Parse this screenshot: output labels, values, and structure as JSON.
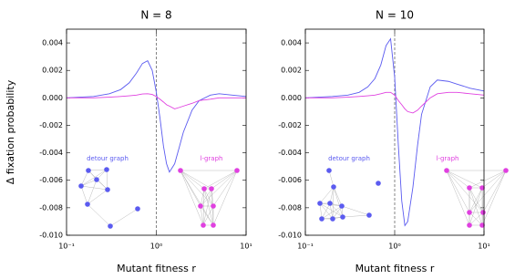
{
  "chart_data": [
    {
      "type": "line",
      "title": "N = 8",
      "xlabel": "Mutant fitness r",
      "ylabel": "Δ  fixation probability",
      "xscale": "log",
      "xlim": [
        0.1,
        10
      ],
      "xticks": [
        {
          "value": 0.1,
          "label": "10⁻¹"
        },
        {
          "value": 1,
          "label": "10⁰"
        },
        {
          "value": 10,
          "label": "10¹"
        }
      ],
      "ylim": [
        -0.01,
        0.005
      ],
      "yticks": [
        0.004,
        0.002,
        {
          "value": 0,
          "label": "0.000"
        },
        -0.002,
        -0.004,
        -0.006,
        -0.008,
        {
          "value": -0.01,
          "label": "-0.010"
        }
      ],
      "vline": 1,
      "annotations": [
        "detour graph",
        "l-graph"
      ],
      "x": [
        0.1,
        0.2,
        0.3,
        0.4,
        0.5,
        0.6,
        0.7,
        0.8,
        0.9,
        1,
        1.1,
        1.2,
        1.3,
        1.4,
        1.6,
        1.8,
        2,
        2.5,
        3,
        4,
        5,
        7,
        10
      ],
      "series": [
        {
          "color": "#5b5bf0",
          "values": [
            0,
            0.0001,
            0.0003,
            0.0006,
            0.0011,
            0.0018,
            0.0025,
            0.0027,
            0.002,
            0.0004,
            -0.0015,
            -0.0035,
            -0.0048,
            -0.0054,
            -0.0048,
            -0.0036,
            -0.0025,
            -0.0009,
            -0.0002,
            0.0002,
            0.0003,
            0.0002,
            0.0001
          ]
        },
        {
          "color": "#e040e0",
          "values": [
            0,
            0,
            5e-05,
            0.0001,
            0.00015,
            0.0002,
            0.00028,
            0.0003,
            0.00025,
            0.0001,
            -0.0001,
            -0.0003,
            -0.0005,
            -0.0006,
            -0.0008,
            -0.0007,
            -0.0006,
            -0.0004,
            -0.0002,
            -0.0001,
            0,
            0,
            0
          ]
        }
      ]
    },
    {
      "type": "line",
      "title": "N = 10",
      "xlabel": "Mutant fitness r",
      "xscale": "log",
      "xlim": [
        0.1,
        10
      ],
      "xticks": [
        {
          "value": 0.1,
          "label": "10⁻¹"
        },
        {
          "value": 1,
          "label": "10⁰"
        },
        {
          "value": 10,
          "label": "10¹"
        }
      ],
      "ylim": [
        -0.01,
        0.005
      ],
      "yticks": [
        0.004,
        0.002,
        {
          "value": 0,
          "label": "0.000"
        },
        -0.002,
        -0.004,
        -0.006,
        -0.008,
        {
          "value": -0.01,
          "label": "-0.010"
        }
      ],
      "vline": 1,
      "annotations": [
        "detour graph",
        "l-graph"
      ],
      "x": [
        0.1,
        0.2,
        0.3,
        0.4,
        0.5,
        0.6,
        0.7,
        0.8,
        0.9,
        1,
        1.1,
        1.2,
        1.3,
        1.4,
        1.6,
        1.8,
        2,
        2.5,
        3,
        4,
        5,
        7,
        10
      ],
      "series": [
        {
          "color": "#5b5bf0",
          "values": [
            0,
            0.0001,
            0.0002,
            0.0004,
            0.0008,
            0.0014,
            0.0024,
            0.0038,
            0.0043,
            0.0015,
            -0.0035,
            -0.0075,
            -0.0093,
            -0.009,
            -0.0065,
            -0.0035,
            -0.0012,
            0.0008,
            0.0013,
            0.0012,
            0.001,
            0.0007,
            0.0005
          ]
        },
        {
          "color": "#e040e0",
          "values": [
            0,
            0,
            5e-05,
            0.0001,
            0.00015,
            0.0002,
            0.0003,
            0.0004,
            0.0004,
            0.0002,
            -0.0002,
            -0.0005,
            -0.0008,
            -0.001,
            -0.0011,
            -0.0009,
            -0.0006,
            0,
            0.0003,
            0.0004,
            0.0004,
            0.0003,
            0.0002
          ]
        }
      ]
    }
  ]
}
